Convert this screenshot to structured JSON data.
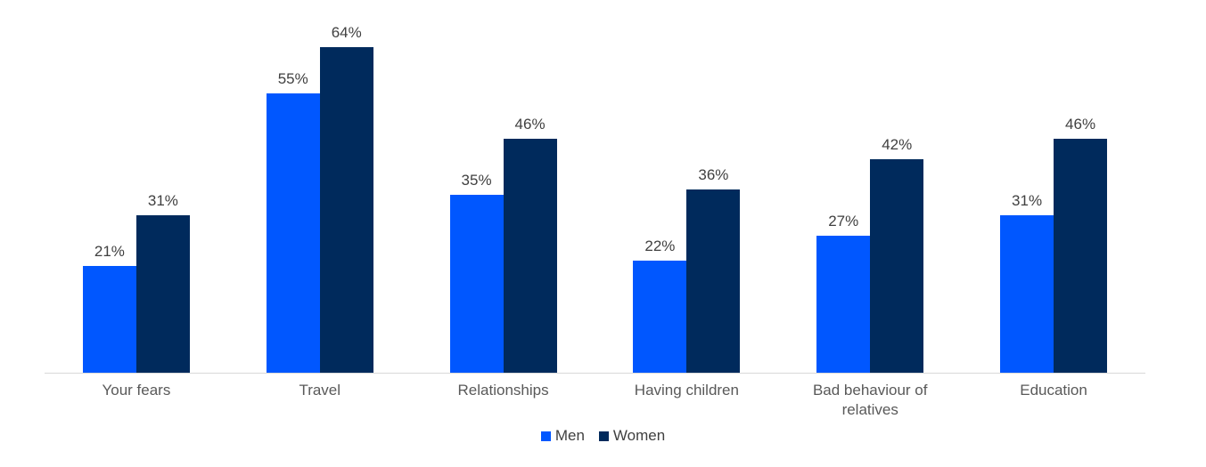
{
  "chart_data": {
    "type": "bar",
    "title": "",
    "xlabel": "",
    "ylabel": "",
    "categories": [
      "Your fears",
      "Travel",
      "Relationships",
      "Having children",
      "Bad behaviour of relatives",
      "Education"
    ],
    "series": [
      {
        "name": "Men",
        "color": "#0057FF",
        "values": [
          21,
          55,
          35,
          22,
          27,
          31
        ]
      },
      {
        "name": "Women",
        "color": "#002A5C",
        "values": [
          31,
          64,
          46,
          36,
          42,
          46
        ]
      }
    ],
    "value_suffix": "%",
    "ylim": [
      0,
      70
    ],
    "grid": false,
    "y_axis_labels_visible": false,
    "legend_position": "bottom"
  },
  "colors": {
    "axis_line": "#D9D9D9",
    "value_label_text": "#404040",
    "category_label_text": "#595959",
    "legend_text": "#404040",
    "background": "#FFFFFF"
  }
}
